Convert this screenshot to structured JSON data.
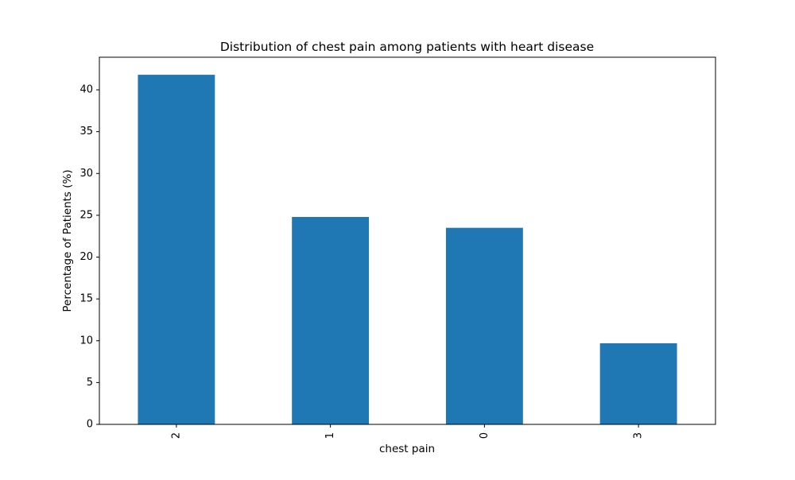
{
  "chart_data": {
    "type": "bar",
    "title": "Distribution of chest pain among patients with heart disease",
    "xlabel": "chest pain",
    "ylabel": "Percentage of Patients (%)",
    "categories": [
      "2",
      "1",
      "0",
      "3"
    ],
    "values": [
      41.8,
      24.8,
      23.5,
      9.7
    ],
    "ylim": [
      0,
      43.9
    ],
    "yticks": [
      0,
      5,
      10,
      15,
      20,
      25,
      30,
      35,
      40
    ],
    "bar_color": "#1f77b4",
    "grid": false,
    "legend": "none",
    "xtick_rotation": 90
  }
}
